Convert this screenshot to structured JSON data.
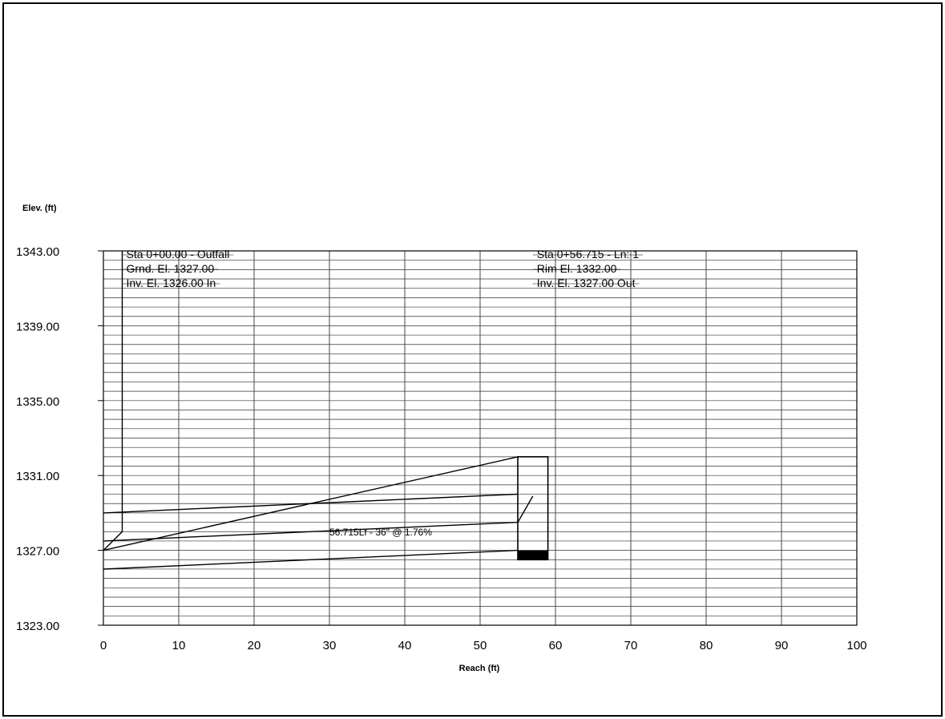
{
  "chart_data": {
    "type": "line",
    "title": "",
    "xlabel": "Reach (ft)",
    "ylabel": "Elev. (ft)",
    "xlim": [
      0,
      100
    ],
    "ylim": [
      1323,
      1343
    ],
    "x_ticks": [
      "0",
      "10",
      "20",
      "30",
      "40",
      "50",
      "60",
      "70",
      "80",
      "90",
      "100"
    ],
    "y_ticks": [
      "1323.00",
      "1327.00",
      "1331.00",
      "1335.00",
      "1339.00",
      "1343.00"
    ],
    "grid": true,
    "series": [
      {
        "points": [
          [
            0,
            1327.0
          ],
          [
            55,
            1332.0
          ]
        ]
      },
      {
        "points": [
          [
            0,
            1329.0
          ],
          [
            55,
            1330.0
          ]
        ]
      },
      {
        "points": [
          [
            0,
            1327.5
          ],
          [
            55,
            1328.5
          ]
        ]
      },
      {
        "points": [
          [
            0,
            1326.0
          ],
          [
            55,
            1327.0
          ]
        ]
      },
      {
        "points": [
          [
            0,
            1327.0
          ],
          [
            2.5,
            1328.0
          ],
          [
            2.5,
            1343.0
          ]
        ]
      },
      {
        "points": [
          [
            55,
            1328.5
          ],
          [
            57,
            1329.9
          ]
        ]
      }
    ],
    "structure": {
      "x0": 55,
      "x1": 59,
      "top": 1332.0,
      "bottom": 1326.5,
      "fill_top": 1327.0
    },
    "annotations": [
      {
        "id": "outfall",
        "anchor_x": 2.5,
        "lines": [
          "Sta 0+00.00 - Outfall",
          "Grnd. El. 1327.00",
          "Inv. El. 1326.00 In"
        ]
      },
      {
        "id": "line1",
        "anchor_x": 57,
        "lines": [
          "Sta 0+56.715 - Ln: 1",
          "Rim El. 1332.00",
          "Inv. El. 1327.00 Out"
        ]
      },
      {
        "id": "pipe",
        "x": 30,
        "y": 1327.8,
        "text": "56.715Lf - 36\" @ 1.76%"
      }
    ]
  }
}
